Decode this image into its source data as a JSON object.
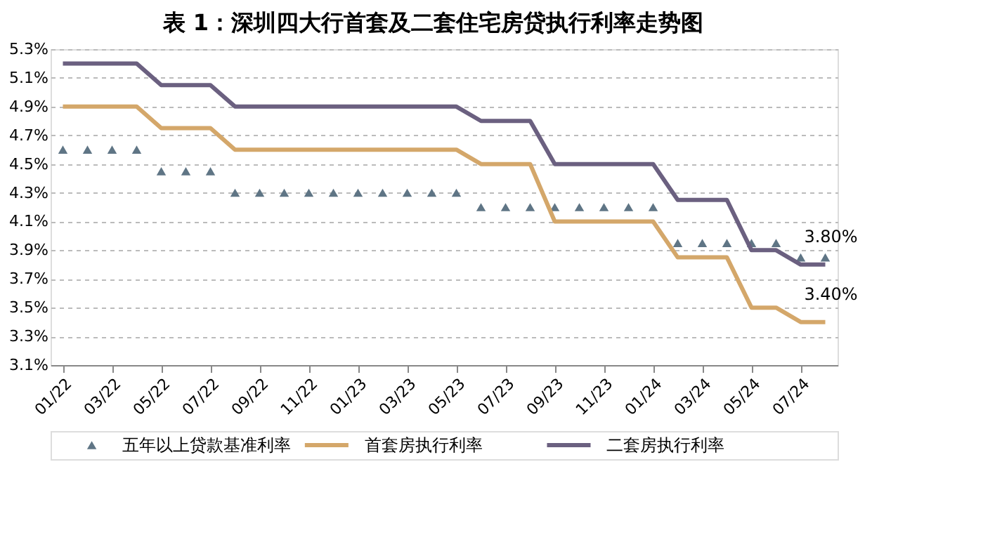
{
  "chart_data": {
    "type": "line",
    "title": "表 1：深圳四大行首套及二套住宅房贷执行利率走势图",
    "categories": [
      "01/22",
      null,
      "03/22",
      null,
      "05/22",
      null,
      "07/22",
      null,
      "09/22",
      null,
      "11/22",
      null,
      "01/23",
      null,
      "03/23",
      null,
      "05/23",
      null,
      "07/23",
      null,
      "09/23",
      null,
      "11/23",
      null,
      "01/24",
      null,
      "03/24",
      null,
      "05/24",
      null,
      "07/24",
      null
    ],
    "series": [
      {
        "name": "五年以上贷款基准利率",
        "type": "scatter",
        "marker": "triangle",
        "color": "#5f7585",
        "values": [
          4.6,
          4.6,
          4.6,
          4.6,
          4.45,
          4.45,
          4.45,
          4.3,
          4.3,
          4.3,
          4.3,
          4.3,
          4.3,
          4.3,
          4.3,
          4.3,
          4.3,
          4.2,
          4.2,
          4.2,
          4.2,
          4.2,
          4.2,
          4.2,
          4.2,
          3.95,
          3.95,
          3.95,
          3.95,
          3.95,
          3.85,
          3.85
        ]
      },
      {
        "name": "首套房执行利率",
        "type": "line",
        "color": "#d4a76a",
        "values": [
          4.9,
          4.9,
          4.9,
          4.9,
          4.75,
          4.75,
          4.75,
          4.6,
          4.6,
          4.6,
          4.6,
          4.6,
          4.6,
          4.6,
          4.6,
          4.6,
          4.6,
          4.5,
          4.5,
          4.5,
          4.1,
          4.1,
          4.1,
          4.1,
          4.1,
          3.85,
          3.85,
          3.85,
          3.5,
          3.5,
          3.4,
          3.4
        ]
      },
      {
        "name": "二套房执行利率",
        "type": "line",
        "color": "#6b6080",
        "values": [
          5.2,
          5.2,
          5.2,
          5.2,
          5.05,
          5.05,
          5.05,
          4.9,
          4.9,
          4.9,
          4.9,
          4.9,
          4.9,
          4.9,
          4.9,
          4.9,
          4.9,
          4.8,
          4.8,
          4.8,
          4.5,
          4.5,
          4.5,
          4.5,
          4.5,
          4.25,
          4.25,
          4.25,
          3.9,
          3.9,
          3.8,
          3.8
        ]
      }
    ],
    "ylim": [
      3.1,
      5.3
    ],
    "yticks": [
      {
        "value": 3.1,
        "label": "3.1%"
      },
      {
        "value": 3.3,
        "label": "3.3%"
      },
      {
        "value": 3.5,
        "label": "3.5%"
      },
      {
        "value": 3.7,
        "label": "3.7%"
      },
      {
        "value": 3.9,
        "label": "3.9%"
      },
      {
        "value": 4.1,
        "label": "4.1%"
      },
      {
        "value": 4.3,
        "label": "4.3%"
      },
      {
        "value": 4.5,
        "label": "4.5%"
      },
      {
        "value": 4.7,
        "label": "4.7%"
      },
      {
        "value": 4.9,
        "label": "4.9%"
      },
      {
        "value": 5.1,
        "label": "5.1%"
      },
      {
        "value": 5.3,
        "label": "5.3%"
      }
    ],
    "annotations": [
      {
        "text": "3.80%",
        "y": 3.8
      },
      {
        "text": "3.40%",
        "y": 3.4
      }
    ],
    "grid": "y",
    "legend": "bottom",
    "line_style": "solid"
  }
}
